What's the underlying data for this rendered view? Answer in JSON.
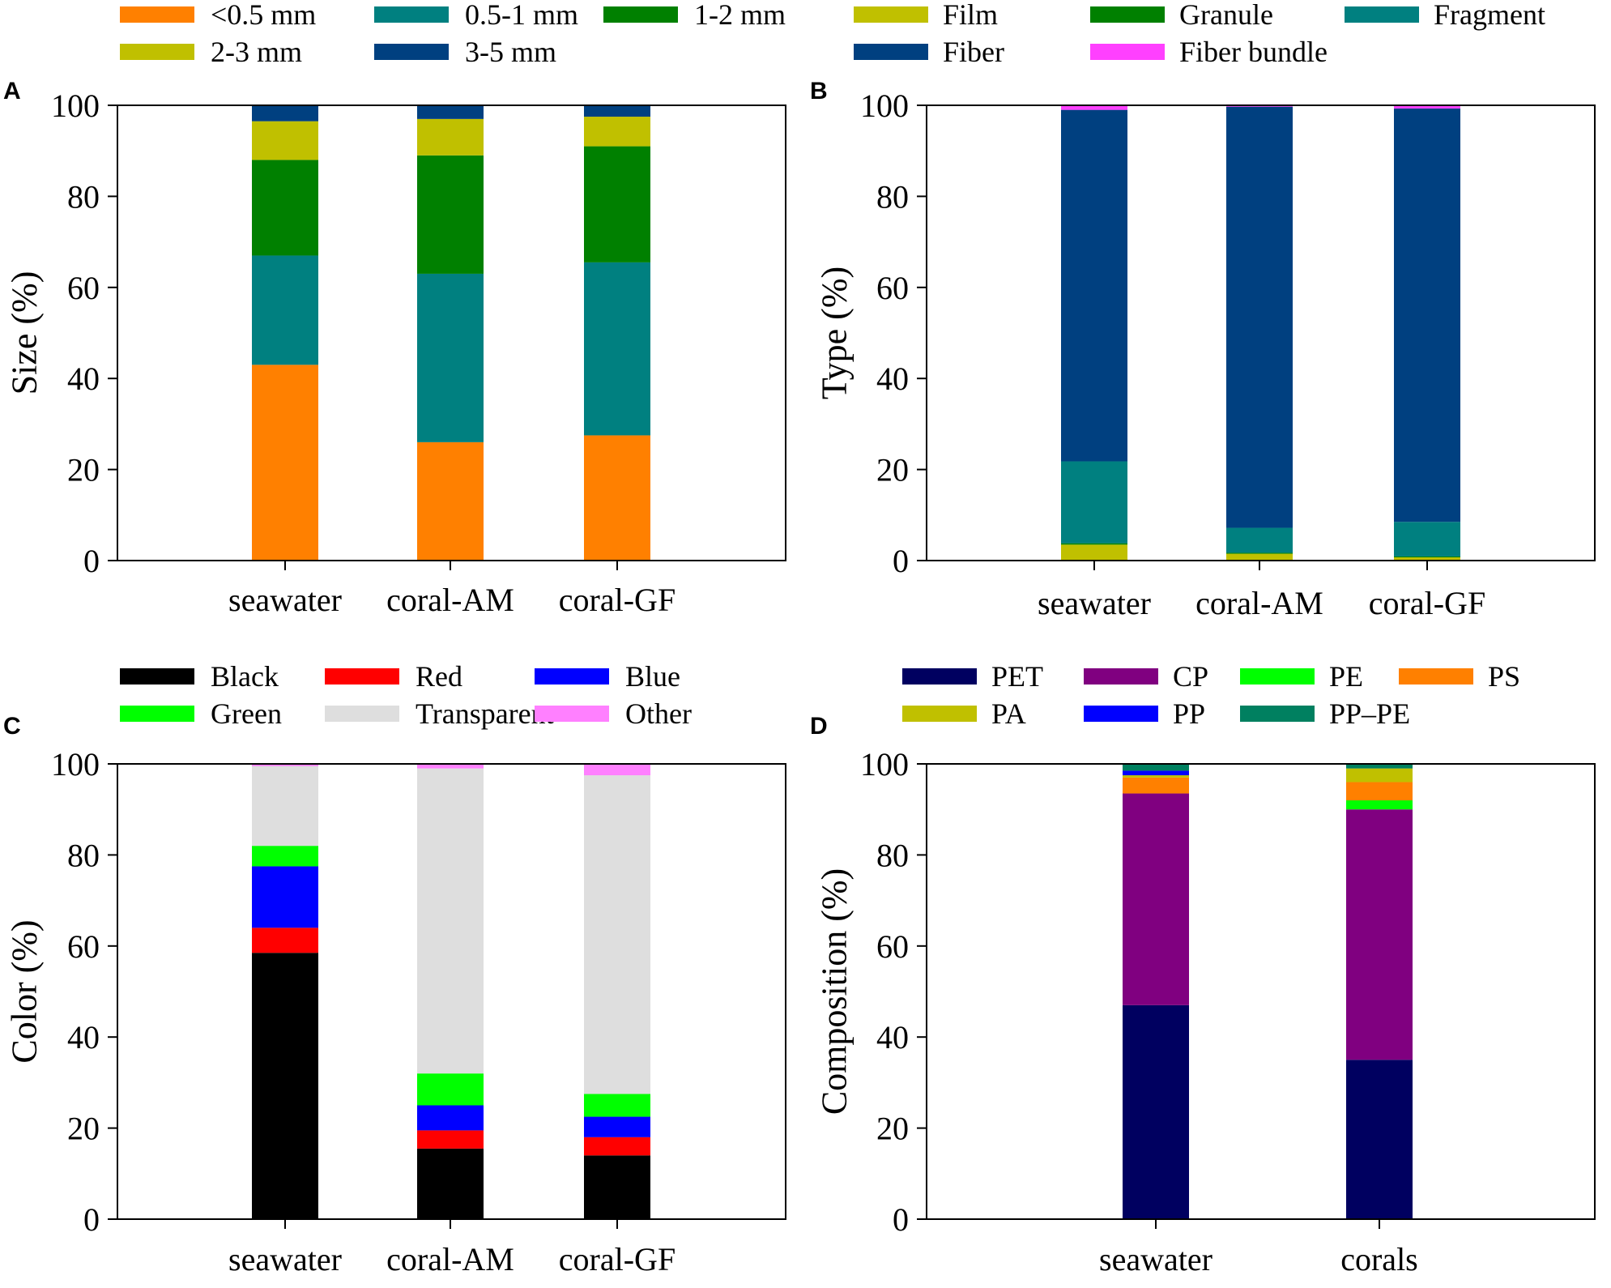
{
  "chart_data": [
    {
      "id": "A",
      "type": "bar",
      "stacked": true,
      "letter": "A",
      "ylabel": "Size (%)",
      "xlabel": "",
      "ylim": [
        0,
        100
      ],
      "yticks": [
        0,
        20,
        40,
        60,
        80,
        100
      ],
      "categories": [
        "seawater",
        "coral-AM",
        "coral-GF"
      ],
      "legend_columns": 3,
      "series": [
        {
          "name": "<0.5 mm",
          "color": "#FF8000",
          "values": [
            43.0,
            26.0,
            27.5
          ]
        },
        {
          "name": "0.5-1 mm",
          "color": "#008080",
          "values": [
            24.0,
            37.0,
            38.0
          ]
        },
        {
          "name": "1-2 mm",
          "color": "#008000",
          "values": [
            21.0,
            26.0,
            25.5
          ]
        },
        {
          "name": "2-3 mm",
          "color": "#C0C000",
          "values": [
            8.5,
            8.0,
            6.5
          ]
        },
        {
          "name": "3-5 mm",
          "color": "#004080",
          "values": [
            3.5,
            3.0,
            2.5
          ]
        }
      ]
    },
    {
      "id": "B",
      "type": "bar",
      "stacked": true,
      "letter": "B",
      "ylabel": "Type (%)",
      "xlabel": "",
      "ylim": [
        0,
        100
      ],
      "yticks": [
        0,
        20,
        40,
        60,
        80,
        100
      ],
      "categories": [
        "seawater",
        "coral-AM",
        "coral-GF"
      ],
      "legend_columns": 3,
      "series": [
        {
          "name": "Film",
          "color": "#C0C000",
          "values": [
            3.5,
            1.5,
            0.7
          ]
        },
        {
          "name": "Granule",
          "color": "#008000",
          "values": [
            0.3,
            0.2,
            0.2
          ]
        },
        {
          "name": "Fragment",
          "color": "#008080",
          "values": [
            18.0,
            5.5,
            7.6
          ]
        },
        {
          "name": "Fiber",
          "color": "#004080",
          "values": [
            77.2,
            92.5,
            90.8
          ]
        },
        {
          "name": "Fiber bundle",
          "color": "#FF40FF",
          "values": [
            1.0,
            0.5,
            0.7
          ]
        }
      ]
    },
    {
      "id": "C",
      "type": "bar",
      "stacked": true,
      "letter": "C",
      "ylabel": "Color (%)",
      "xlabel": "",
      "ylim": [
        0,
        100
      ],
      "yticks": [
        0,
        20,
        40,
        60,
        80,
        100
      ],
      "categories": [
        "seawater",
        "coral-AM",
        "coral-GF"
      ],
      "legend_columns": 3,
      "series": [
        {
          "name": "Black",
          "color": "#000000",
          "values": [
            58.5,
            15.5,
            14.0
          ]
        },
        {
          "name": "Red",
          "color": "#FF0000",
          "values": [
            5.5,
            4.0,
            4.0
          ]
        },
        {
          "name": "Blue",
          "color": "#0000FF",
          "values": [
            13.5,
            5.5,
            4.5
          ]
        },
        {
          "name": "Green",
          "color": "#00FF00",
          "values": [
            4.5,
            7.0,
            5.0
          ]
        },
        {
          "name": "Transparent",
          "color": "#DEDEDE",
          "values": [
            17.5,
            67.0,
            70.0
          ]
        },
        {
          "name": "Other",
          "color": "#FF80FF",
          "values": [
            0.5,
            1.0,
            2.5
          ]
        }
      ]
    },
    {
      "id": "D",
      "type": "bar",
      "stacked": true,
      "letter": "D",
      "ylabel": "Composition (%)",
      "xlabel": "",
      "ylim": [
        0,
        100
      ],
      "yticks": [
        0,
        20,
        40,
        60,
        80,
        100
      ],
      "categories": [
        "seawater",
        "corals"
      ],
      "legend_columns": 4,
      "series": [
        {
          "name": "PET",
          "color": "#000060",
          "values": [
            47.0,
            35.0
          ]
        },
        {
          "name": "CP",
          "color": "#800080",
          "values": [
            46.5,
            55.0
          ]
        },
        {
          "name": "PE",
          "color": "#00FF00",
          "values": [
            0.0,
            2.0
          ]
        },
        {
          "name": "PS",
          "color": "#FF8000",
          "values": [
            3.5,
            4.0
          ]
        },
        {
          "name": "PA",
          "color": "#C0C000",
          "values": [
            0.5,
            3.0
          ]
        },
        {
          "name": "PP",
          "color": "#0000FF",
          "values": [
            1.0,
            0.0
          ]
        },
        {
          "name": "PP–PE",
          "color": "#008060",
          "values": [
            1.5,
            1.0
          ]
        }
      ]
    }
  ]
}
